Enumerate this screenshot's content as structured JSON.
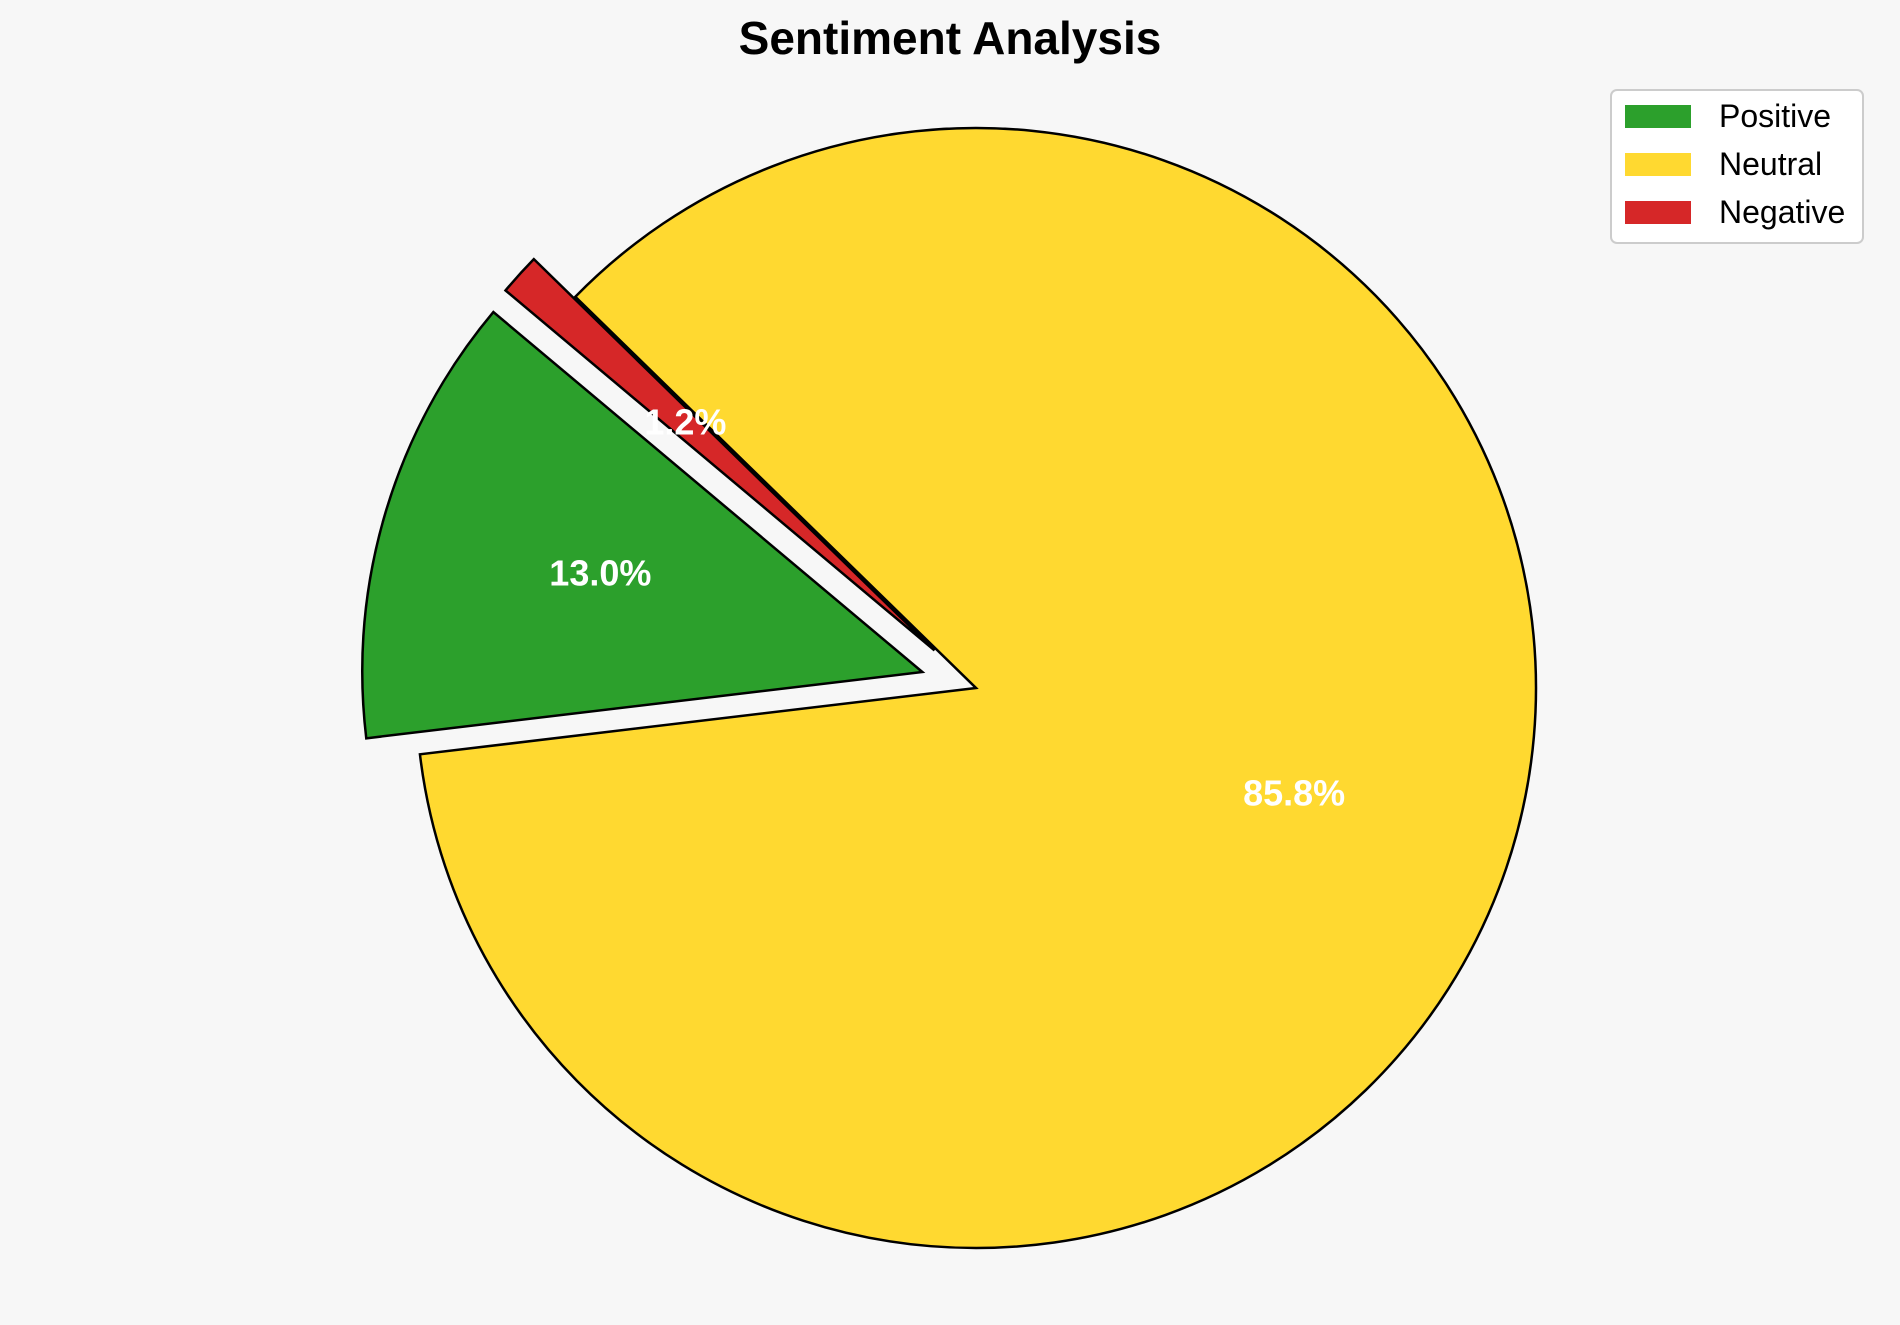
{
  "chart_data": {
    "type": "pie",
    "title": "Sentiment Analysis",
    "slices": [
      {
        "label": "Positive",
        "value": 13.0,
        "display": "13.0%",
        "color": "#2ca02c",
        "exploded": true
      },
      {
        "label": "Neutral",
        "value": 85.8,
        "display": "85.8%",
        "color": "#ffd930",
        "exploded": false
      },
      {
        "label": "Negative",
        "value": 1.2,
        "display": "1.2%",
        "color": "#d62728",
        "exploded": true
      }
    ],
    "legend": {
      "placement": "top-right"
    }
  }
}
